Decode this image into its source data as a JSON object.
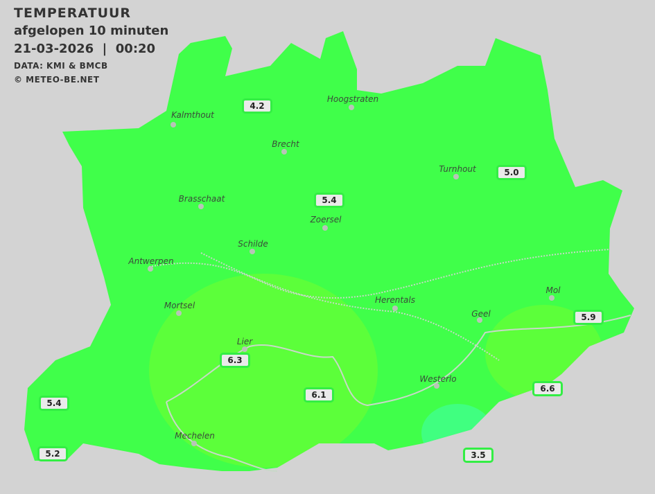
{
  "header": {
    "title": "TEMPERATUUR",
    "subtitle": "afgelopen 10 minuten",
    "datetime": "21-03-2026  |  00:20",
    "source": "DATA: KMI & BMCB",
    "copyright": "© METEO-BE.NET"
  },
  "colors": {
    "background": "#d3d3d3",
    "base": "#40ff4a",
    "warm": "#5cff3a",
    "cool": "#40ff80",
    "station_border": "#33ee44"
  },
  "cities": [
    {
      "name": "Kalmthout"
    },
    {
      "name": "Hoogstraten"
    },
    {
      "name": "Brecht"
    },
    {
      "name": "Turnhout"
    },
    {
      "name": "Brasschaat"
    },
    {
      "name": "Zoersel"
    },
    {
      "name": "Schilde"
    },
    {
      "name": "Antwerpen"
    },
    {
      "name": "Mortsel"
    },
    {
      "name": "Herentals"
    },
    {
      "name": "Mol"
    },
    {
      "name": "Geel"
    },
    {
      "name": "Lier"
    },
    {
      "name": "Westerlo"
    },
    {
      "name": "Mechelen"
    }
  ],
  "stations": [
    {
      "value": "4.2"
    },
    {
      "value": "5.0"
    },
    {
      "value": "5.4"
    },
    {
      "value": "5.9"
    },
    {
      "value": "6.3"
    },
    {
      "value": "6.6"
    },
    {
      "value": "6.1"
    },
    {
      "value": "5.4"
    },
    {
      "value": "5.2"
    },
    {
      "value": "3.5"
    }
  ]
}
